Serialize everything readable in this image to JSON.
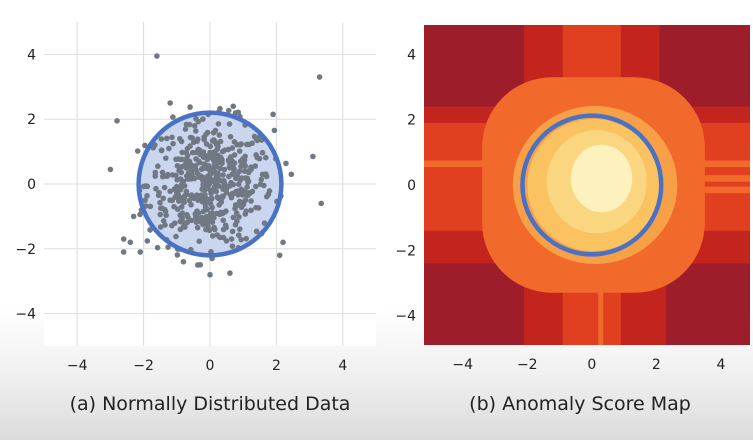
{
  "chart_data": [
    {
      "type": "scatter",
      "caption": "(a) Normally Distributed Data",
      "xlim": [
        -5,
        5
      ],
      "ylim": [
        -5,
        5
      ],
      "xticks": [
        -4,
        -2,
        0,
        2,
        4
      ],
      "yticks": [
        -4,
        -2,
        0,
        2,
        4
      ],
      "grid": true,
      "point_color": "#707884",
      "circle": {
        "cx": 0,
        "cy": 0,
        "r": 2.15,
        "stroke": "#4a72c4",
        "fill": "#c9d6ee"
      },
      "outliers": [
        {
          "x": -1.6,
          "y": 3.95
        },
        {
          "x": 3.3,
          "y": 3.3
        },
        {
          "x": -2.8,
          "y": 1.95
        },
        {
          "x": 3.1,
          "y": 0.85
        },
        {
          "x": 3.35,
          "y": -0.6
        },
        {
          "x": -3.0,
          "y": 0.45
        },
        {
          "x": -2.6,
          "y": -1.7
        },
        {
          "x": -2.4,
          "y": -1.8
        },
        {
          "x": -2.1,
          "y": -2.1
        },
        {
          "x": -2.6,
          "y": -2.1
        },
        {
          "x": 2.2,
          "y": -1.8
        },
        {
          "x": 2.1,
          "y": -2.2
        },
        {
          "x": 0,
          "y": -2.8
        },
        {
          "x": 0.6,
          "y": -2.75
        },
        {
          "x": -0.8,
          "y": -2.4
        },
        {
          "x": 1.9,
          "y": 2.15
        },
        {
          "x": -1.2,
          "y": 2.5
        },
        {
          "x": 0.7,
          "y": 2.4
        },
        {
          "x": -2.3,
          "y": -1.0
        },
        {
          "x": 2.45,
          "y": 0.3
        }
      ],
      "cluster": {
        "count": 520,
        "sigma": 0.95
      }
    },
    {
      "type": "heatmap",
      "caption": "(b) Anomaly Score Map",
      "xlim": [
        -5.2,
        4.9
      ],
      "ylim": [
        -4.9,
        4.9
      ],
      "xticks": [
        -4,
        -2,
        0,
        2,
        4
      ],
      "yticks": [
        -4,
        -2,
        0,
        2,
        4
      ],
      "circle": {
        "cx": 0,
        "cy": 0,
        "r": 2.15,
        "stroke": "#4a72c4"
      },
      "colors": {
        "darkest": "#9e1d2a",
        "dark": "#c4241e",
        "mid": "#e04020",
        "orange": "#f1692b",
        "light_orange": "#f7a048",
        "yellow": "#fbd680",
        "pale": "#fdf2bd"
      }
    }
  ]
}
